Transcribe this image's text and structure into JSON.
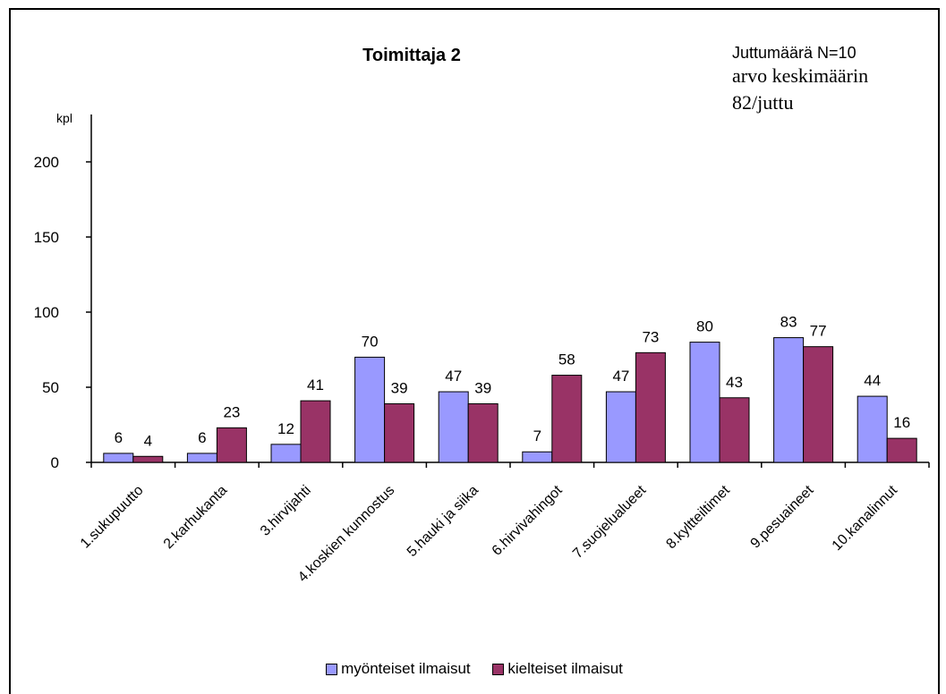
{
  "chart_data": {
    "type": "bar",
    "title": "Toimittaja 2",
    "ylabel": "kpl",
    "xlabel": "",
    "ylim": [
      0,
      200
    ],
    "yticks": [
      0,
      50,
      100,
      150,
      200
    ],
    "grid": false,
    "legend_position": "bottom",
    "categories": [
      "1.sukupuutto",
      "2.karhukanta",
      "3.hirvijahti",
      "4.koskien kunnostus",
      "5.hauki ja siika",
      "6.hirvivahingot",
      "7.suojelualueet",
      "8.kyltteiltimet",
      "9.pesuaineet",
      "10.kanalinnut"
    ],
    "series": [
      {
        "name": "myönteiset ilmaisut",
        "color": "#9999ff",
        "values": [
          6,
          6,
          12,
          70,
          47,
          7,
          47,
          80,
          83,
          44
        ]
      },
      {
        "name": "kielteiset ilmaisut",
        "color": "#993366",
        "values": [
          4,
          23,
          41,
          39,
          39,
          58,
          73,
          43,
          77,
          16
        ]
      }
    ]
  },
  "annotation": {
    "line1": "Juttumäärä N=10",
    "line2": "arvo keskimäärin",
    "line3": "82/juttu"
  }
}
